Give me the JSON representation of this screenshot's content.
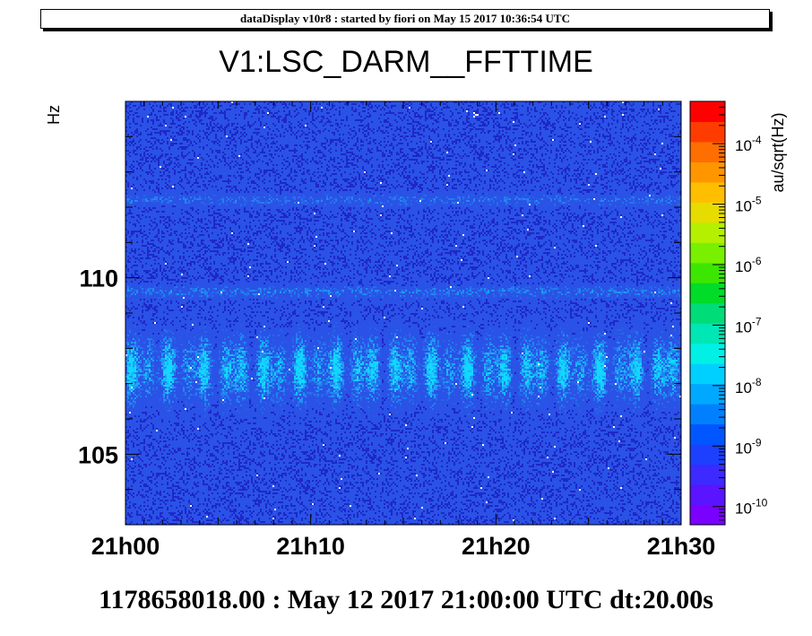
{
  "banner": "dataDisplay v10r8 : started by fiori on May 15 2017 10:36:54 UTC",
  "footer": "1178658018.00 : May 12 2017 21:00:00 UTC dt:20.00s",
  "colors": {
    "background_blue": "#2a52e6",
    "band_cyan": "#12d8ff",
    "palette": [
      "#7a00ff",
      "#5a14ff",
      "#3c2aff",
      "#1d40ff",
      "#0057ff",
      "#0080ff",
      "#00a8ff",
      "#00d0ff",
      "#00f0e6",
      "#00e6b4",
      "#00dc78",
      "#00dc28",
      "#3ce600",
      "#78f000",
      "#b4f000",
      "#e6dc00",
      "#ffbe00",
      "#ff9600",
      "#ff6e00",
      "#ff3c00",
      "#ff0000"
    ]
  },
  "chart_data": {
    "type": "heatmap",
    "title": "V1:LSC_DARM__FFTTIME",
    "ylabel": "Hz",
    "colorbar_label": "au/sqrt(Hz)",
    "xlim": [
      "21h00",
      "21h30"
    ],
    "ylim": [
      103,
      115
    ],
    "x_tick_labels": [
      "21h00",
      "21h10",
      "21h20",
      "21h30"
    ],
    "x_tick_values_min": [
      0,
      10,
      20,
      30
    ],
    "y_tick_labels": [
      "105",
      "110"
    ],
    "y_tick_values": [
      105,
      110
    ],
    "zscale": "log",
    "zlim": [
      5e-11,
      0.0005
    ],
    "colorbar_tick_labels": [
      {
        "value": 1e-10,
        "label": "10",
        "exp": "-10"
      },
      {
        "value": 1e-09,
        "label": "10",
        "exp": "-9"
      },
      {
        "value": 1e-08,
        "label": "10",
        "exp": "-8"
      },
      {
        "value": 1e-07,
        "label": "10",
        "exp": "-7"
      },
      {
        "value": 1e-06,
        "label": "10",
        "exp": "-6"
      },
      {
        "value": 1e-05,
        "label": "10",
        "exp": "-5"
      },
      {
        "value": 0.0001,
        "label": "10",
        "exp": "-4"
      }
    ],
    "features": [
      {
        "description": "broad elevated band",
        "freq_range_hz": [
          106.5,
          108.5
        ],
        "approx_value": 1e-08
      },
      {
        "description": "narrow line",
        "freq_hz": 109.6,
        "approx_value": 3e-09
      },
      {
        "description": "narrow line",
        "freq_hz": 112.2,
        "approx_value": 3e-09
      },
      {
        "description": "background",
        "approx_value": 1e-09
      }
    ]
  }
}
